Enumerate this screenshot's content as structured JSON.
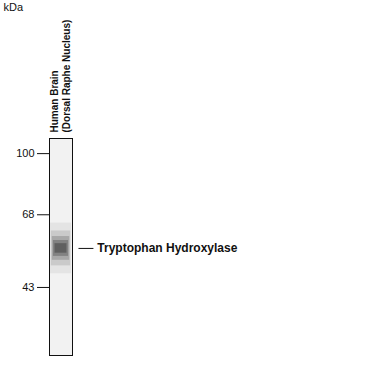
{
  "chart_data": {
    "type": "western_blot",
    "lanes": [
      {
        "label_lines": [
          "Human Brain",
          "(Dorsal Raphe Nucleus)"
        ]
      }
    ],
    "y_label": "kDa",
    "log": "y",
    "ylim": [
      28,
      110
    ],
    "yticks": [
      100,
      68,
      43
    ],
    "bands": [
      {
        "lane": 0,
        "value": 55,
        "label": "Tryptophan Hydroxylase"
      }
    ],
    "color": "#111111"
  }
}
